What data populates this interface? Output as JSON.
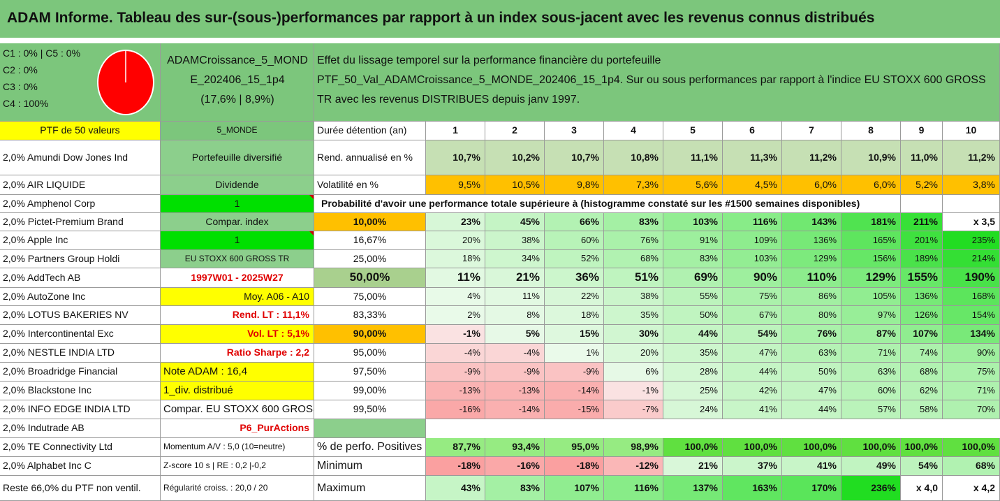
{
  "title": "ADAM Informe. Tableau des sur-(sous-)performances par rapport à un index sous-jacent avec les revenus connus distribués",
  "header": {
    "categories": [
      "C1 : 0% | C5 : 0%",
      "C2 : 0%",
      "C3 : 0%",
      "C4 : 100%"
    ],
    "pie_colors": {
      "C4": "#ff0000"
    },
    "pie_values": {
      "C1": 0,
      "C2": 0,
      "C3": 0,
      "C4": 100,
      "C5": 0
    },
    "portfolio": [
      "ADAMCroissance_5_MOND",
      "E_202406_15_1p4",
      "(17,6% | 8,9%)"
    ],
    "description": [
      "Effet du lissage temporel sur la performance financière du portefeuille",
      "PTF_50_Val_ADAMCroissance_5_MONDE_202406_15_1p4. Sur ou sous performances par rapport à l'indice EU STOXX 600 GROSS",
      "TR avec les revenus DISTRIBUES depuis janv 1997."
    ]
  },
  "col_a": [
    "PTF de 50 valeurs",
    "2,0% Amundi Dow Jones Ind",
    "2,0% AIR LIQUIDE",
    "2,0% Amphenol Corp",
    "2,0% Pictet-Premium Brand",
    "2,0% Apple Inc",
    "2,0% Partners Group Holdi",
    "2,0% AddTech AB",
    "2,0% AutoZone Inc",
    "2,0% LOTUS BAKERIES NV",
    "2,0% Intercontinental Exc",
    "2,0% NESTLE INDIA LTD",
    "2,0% Broadridge Financial",
    "2,0% Blackstone Inc",
    "2,0% INFO EDGE INDIA LTD",
    "2,0% Indutrade AB",
    "2,0% TE Connectivity Ltd",
    "2,0% Alphabet Inc C",
    "Reste 66,0% du PTF non ventil."
  ],
  "col_b": [
    "5_MONDE",
    "Portefeuille diversifié",
    "Dividende",
    "1",
    "Compar. index",
    "1",
    "EU STOXX 600 GROSS TR",
    "1997W01 - 2025W27",
    "Moy. A06 - A10",
    "Rend. LT : 11,1%",
    "Vol. LT : 5,1%",
    "Ratio Sharpe : 2,2",
    "Note ADAM : 16,4",
    "1_div. distribué",
    "Compar. EU STOXX 600 GROSS TR",
    "P6_PurActions",
    "Momentum A/V : 5,0 (10=neutre)",
    "Z-score 10 s | RE : 0,2 |-0,2",
    "Régularité croiss. : 20,0 / 20"
  ],
  "years": {
    "label": "Durée détention (an)",
    "values": [
      "1",
      "2",
      "3",
      "4",
      "5",
      "6",
      "7",
      "8",
      "9",
      "10"
    ]
  },
  "rend": {
    "label": "Rend. annualisé en %",
    "values": [
      "10,7%",
      "10,2%",
      "10,7%",
      "10,8%",
      "11,1%",
      "11,3%",
      "11,2%",
      "10,9%",
      "11,0%",
      "11,2%"
    ]
  },
  "vol": {
    "label": "Volatilité en %",
    "values": [
      "9,5%",
      "10,5%",
      "9,8%",
      "7,3%",
      "5,6%",
      "4,5%",
      "6,0%",
      "6,0%",
      "5,2%",
      "3,8%"
    ]
  },
  "prob_title": "Probabilité d'avoir une performance totale supérieure à (histogramme constaté sur les #1500 semaines disponibles)",
  "prob_rows": [
    {
      "p": "10,00%",
      "v": [
        "23%",
        "45%",
        "66%",
        "83%",
        "103%",
        "116%",
        "143%",
        "181%",
        "211%",
        "x 3,5"
      ]
    },
    {
      "p": "16,67%",
      "v": [
        "20%",
        "38%",
        "60%",
        "76%",
        "91%",
        "109%",
        "136%",
        "165%",
        "201%",
        "235%"
      ]
    },
    {
      "p": "25,00%",
      "v": [
        "18%",
        "34%",
        "52%",
        "68%",
        "83%",
        "103%",
        "129%",
        "156%",
        "189%",
        "214%"
      ]
    },
    {
      "p": "50,00%",
      "v": [
        "11%",
        "21%",
        "36%",
        "51%",
        "69%",
        "90%",
        "110%",
        "129%",
        "155%",
        "190%"
      ]
    },
    {
      "p": "75,00%",
      "v": [
        "4%",
        "11%",
        "22%",
        "38%",
        "55%",
        "75%",
        "86%",
        "105%",
        "136%",
        "168%"
      ]
    },
    {
      "p": "83,33%",
      "v": [
        "2%",
        "8%",
        "18%",
        "35%",
        "50%",
        "67%",
        "80%",
        "97%",
        "126%",
        "154%"
      ]
    },
    {
      "p": "90,00%",
      "v": [
        "-1%",
        "5%",
        "15%",
        "30%",
        "44%",
        "54%",
        "76%",
        "87%",
        "107%",
        "134%"
      ]
    },
    {
      "p": "95,00%",
      "v": [
        "-4%",
        "-4%",
        "1%",
        "20%",
        "35%",
        "47%",
        "63%",
        "71%",
        "74%",
        "90%"
      ]
    },
    {
      "p": "97,50%",
      "v": [
        "-9%",
        "-9%",
        "-9%",
        "6%",
        "28%",
        "44%",
        "50%",
        "63%",
        "68%",
        "75%"
      ]
    },
    {
      "p": "99,00%",
      "v": [
        "-13%",
        "-13%",
        "-14%",
        "-1%",
        "25%",
        "42%",
        "47%",
        "60%",
        "62%",
        "71%"
      ]
    },
    {
      "p": "99,50%",
      "v": [
        "-16%",
        "-14%",
        "-15%",
        "-7%",
        "24%",
        "41%",
        "44%",
        "57%",
        "58%",
        "70%"
      ]
    }
  ],
  "stats": [
    {
      "label": "% de perfo. Positives",
      "v": [
        "87,7%",
        "93,4%",
        "95,0%",
        "98,9%",
        "100,0%",
        "100,0%",
        "100,0%",
        "100,0%",
        "100,0%",
        "100,0%"
      ]
    },
    {
      "label": "Minimum",
      "v": [
        "-18%",
        "-16%",
        "-18%",
        "-12%",
        "21%",
        "37%",
        "41%",
        "49%",
        "54%",
        "68%"
      ]
    },
    {
      "label": "Maximum",
      "v": [
        "43%",
        "83%",
        "107%",
        "116%",
        "137%",
        "163%",
        "170%",
        "236%",
        "x 4,0",
        "x 4,2"
      ]
    }
  ]
}
